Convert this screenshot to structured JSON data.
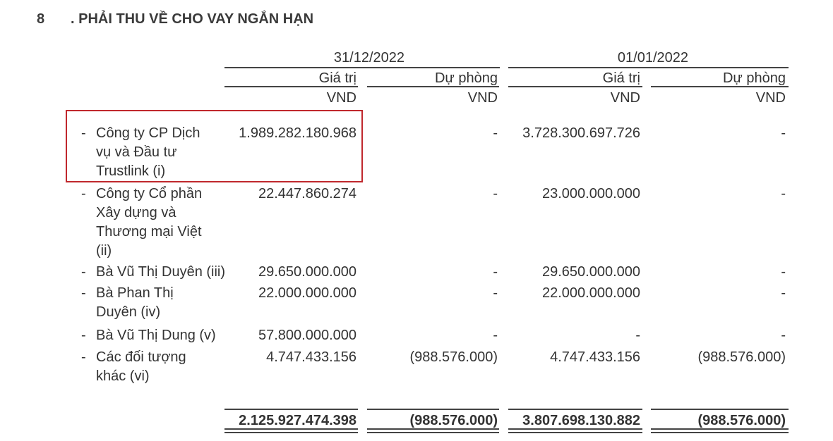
{
  "section": {
    "number": "8",
    "title": ". PHẢI THU VỀ CHO VAY NGẮN HẠN"
  },
  "header": {
    "periods": [
      "31/12/2022",
      "01/01/2022"
    ],
    "columns": [
      "Giá trị",
      "Dự phòng",
      "Giá trị",
      "Dự phòng"
    ],
    "units": [
      "VND",
      "VND",
      "VND",
      "VND"
    ]
  },
  "rows": [
    {
      "dash": "-",
      "label": "Công ty CP Dịch vụ và Đầu tư Trustlink (i)",
      "values": [
        "1.989.282.180.968",
        "-",
        "3.728.300.697.726",
        "-"
      ],
      "highlighted": true
    },
    {
      "dash": "-",
      "label": "Công ty Cổ phần Xây dựng và Thương mại Việt (ii)",
      "values": [
        "22.447.860.274",
        "-",
        "23.000.000.000",
        "-"
      ]
    },
    {
      "dash": "-",
      "label": "Bà Vũ Thị Duyên (iii)",
      "values": [
        "29.650.000.000",
        "-",
        "29.650.000.000",
        "-"
      ]
    },
    {
      "dash": "-",
      "label": "Bà Phan Thị Duyên (iv)",
      "values": [
        "22.000.000.000",
        "-",
        "22.000.000.000",
        "-"
      ]
    },
    {
      "dash": "-",
      "label": "Bà Vũ Thị Dung (v)",
      "values": [
        "57.800.000.000",
        "-",
        "-",
        "-"
      ]
    },
    {
      "dash": "-",
      "label": "Các đối tượng khác (vi)",
      "values": [
        "4.747.433.156",
        "(988.576.000)",
        "4.747.433.156",
        "(988.576.000)"
      ]
    }
  ],
  "totals": [
    "2.125.927.474.398",
    "(988.576.000)",
    "3.807.698.130.882",
    "(988.576.000)"
  ],
  "colors": {
    "highlight_box": "#c0282d"
  }
}
